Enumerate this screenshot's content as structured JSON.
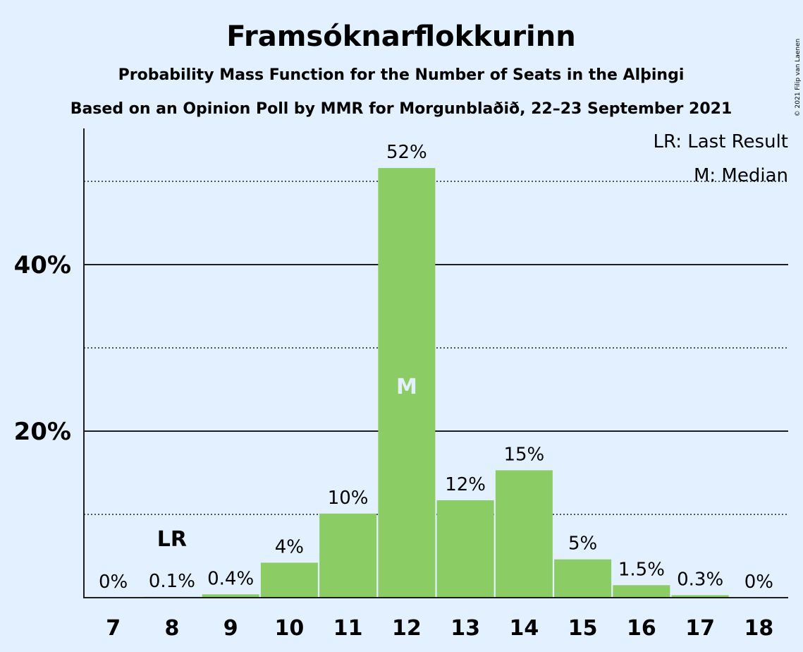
{
  "chart_data": {
    "type": "bar",
    "title": "Framsóknarflokkurinn",
    "subtitle": "Probability Mass Function for the Number of Seats in the Alþingi",
    "subtitle2": "Based on an Opinion Poll by MMR for Morgunblaðið, 22–23 September 2021",
    "copyright": "© 2021 Filip van Laenen",
    "xlabel": "",
    "ylabel": "",
    "categories": [
      "7",
      "8",
      "9",
      "10",
      "11",
      "12",
      "13",
      "14",
      "15",
      "16",
      "17",
      "18"
    ],
    "values": [
      0,
      0.1,
      0.4,
      4.2,
      10.1,
      51.6,
      11.7,
      15.3,
      4.6,
      1.5,
      0.3,
      0
    ],
    "data_labels": [
      "0%",
      "0.1%",
      "0.4%",
      "4%",
      "10%",
      "52%",
      "12%",
      "15%",
      "5%",
      "1.5%",
      "0.3%",
      "0%"
    ],
    "ylim": [
      0,
      56
    ],
    "yticks": [
      {
        "value": 20,
        "label": "20%"
      },
      {
        "value": 40,
        "label": "40%"
      }
    ],
    "minor_gridlines": [
      10,
      30,
      50
    ],
    "last_result": {
      "category": "8",
      "label": "LR"
    },
    "median": {
      "category": "12",
      "label": "M"
    },
    "legend": {
      "position": "top-right",
      "items": [
        "LR: Last Result",
        "M: Median"
      ]
    },
    "colors": {
      "bar": "#8bcc65",
      "background": "#e2f0ff",
      "text": "#1d1d1d",
      "median_text": "#e2f0ff"
    }
  }
}
